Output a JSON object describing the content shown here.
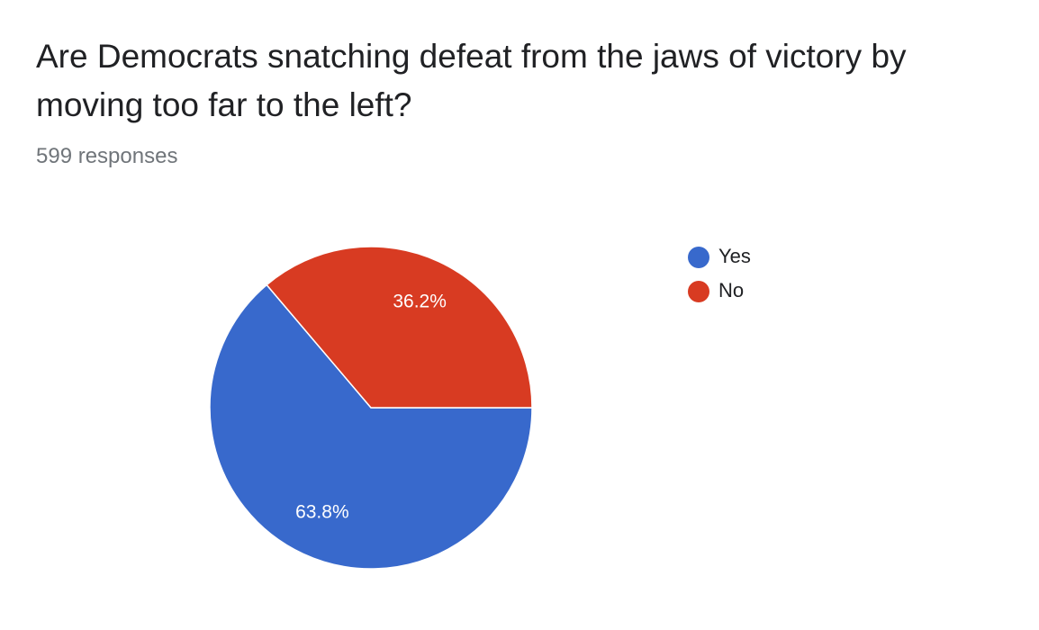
{
  "chart_data": {
    "type": "pie",
    "title": "Are Democrats snatching defeat from the jaws of victory by moving too far to the left?",
    "subtitle": "599 responses",
    "categories": [
      "Yes",
      "No"
    ],
    "values": [
      63.8,
      36.2
    ],
    "value_labels": [
      "63.8%",
      "36.2%"
    ],
    "colors": [
      "#3869cc",
      "#d83b22"
    ],
    "legend": "right"
  }
}
